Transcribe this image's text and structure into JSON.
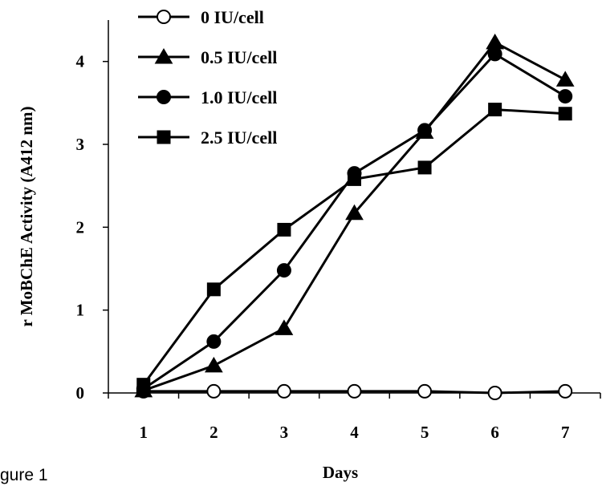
{
  "figure_caption": "gure 1",
  "colors": {
    "line": "#000000",
    "background": "#ffffff",
    "open_marker_fill": "#ffffff"
  },
  "chart_data": {
    "type": "line",
    "title": "",
    "xlabel": "Days",
    "ylabel": "r MoBChE Activity (A412 nm)",
    "x": [
      1,
      2,
      3,
      4,
      5,
      6,
      7
    ],
    "xlim": [
      0.5,
      7.5
    ],
    "ylim": [
      0,
      4.5
    ],
    "x_ticks": [
      1,
      2,
      3,
      4,
      5,
      6,
      7
    ],
    "y_ticks": [
      0,
      1,
      2,
      3,
      4
    ],
    "grid": false,
    "legend_position": "top-left",
    "series": [
      {
        "name": "0 IU/cell",
        "marker": "open-circle",
        "values": [
          0.02,
          0.02,
          0.02,
          0.02,
          0.02,
          0.0,
          0.02
        ]
      },
      {
        "name": "0.5 IU/cell",
        "marker": "filled-triangle",
        "values": [
          0.03,
          0.33,
          0.78,
          2.17,
          3.15,
          4.23,
          3.78
        ]
      },
      {
        "name": "1.0 IU/cell",
        "marker": "filled-circle",
        "values": [
          0.05,
          0.62,
          1.48,
          2.65,
          3.17,
          4.09,
          3.58
        ]
      },
      {
        "name": "2.5 IU/cell",
        "marker": "filled-square",
        "values": [
          0.1,
          1.25,
          1.97,
          2.58,
          2.72,
          3.42,
          3.37
        ]
      }
    ]
  }
}
